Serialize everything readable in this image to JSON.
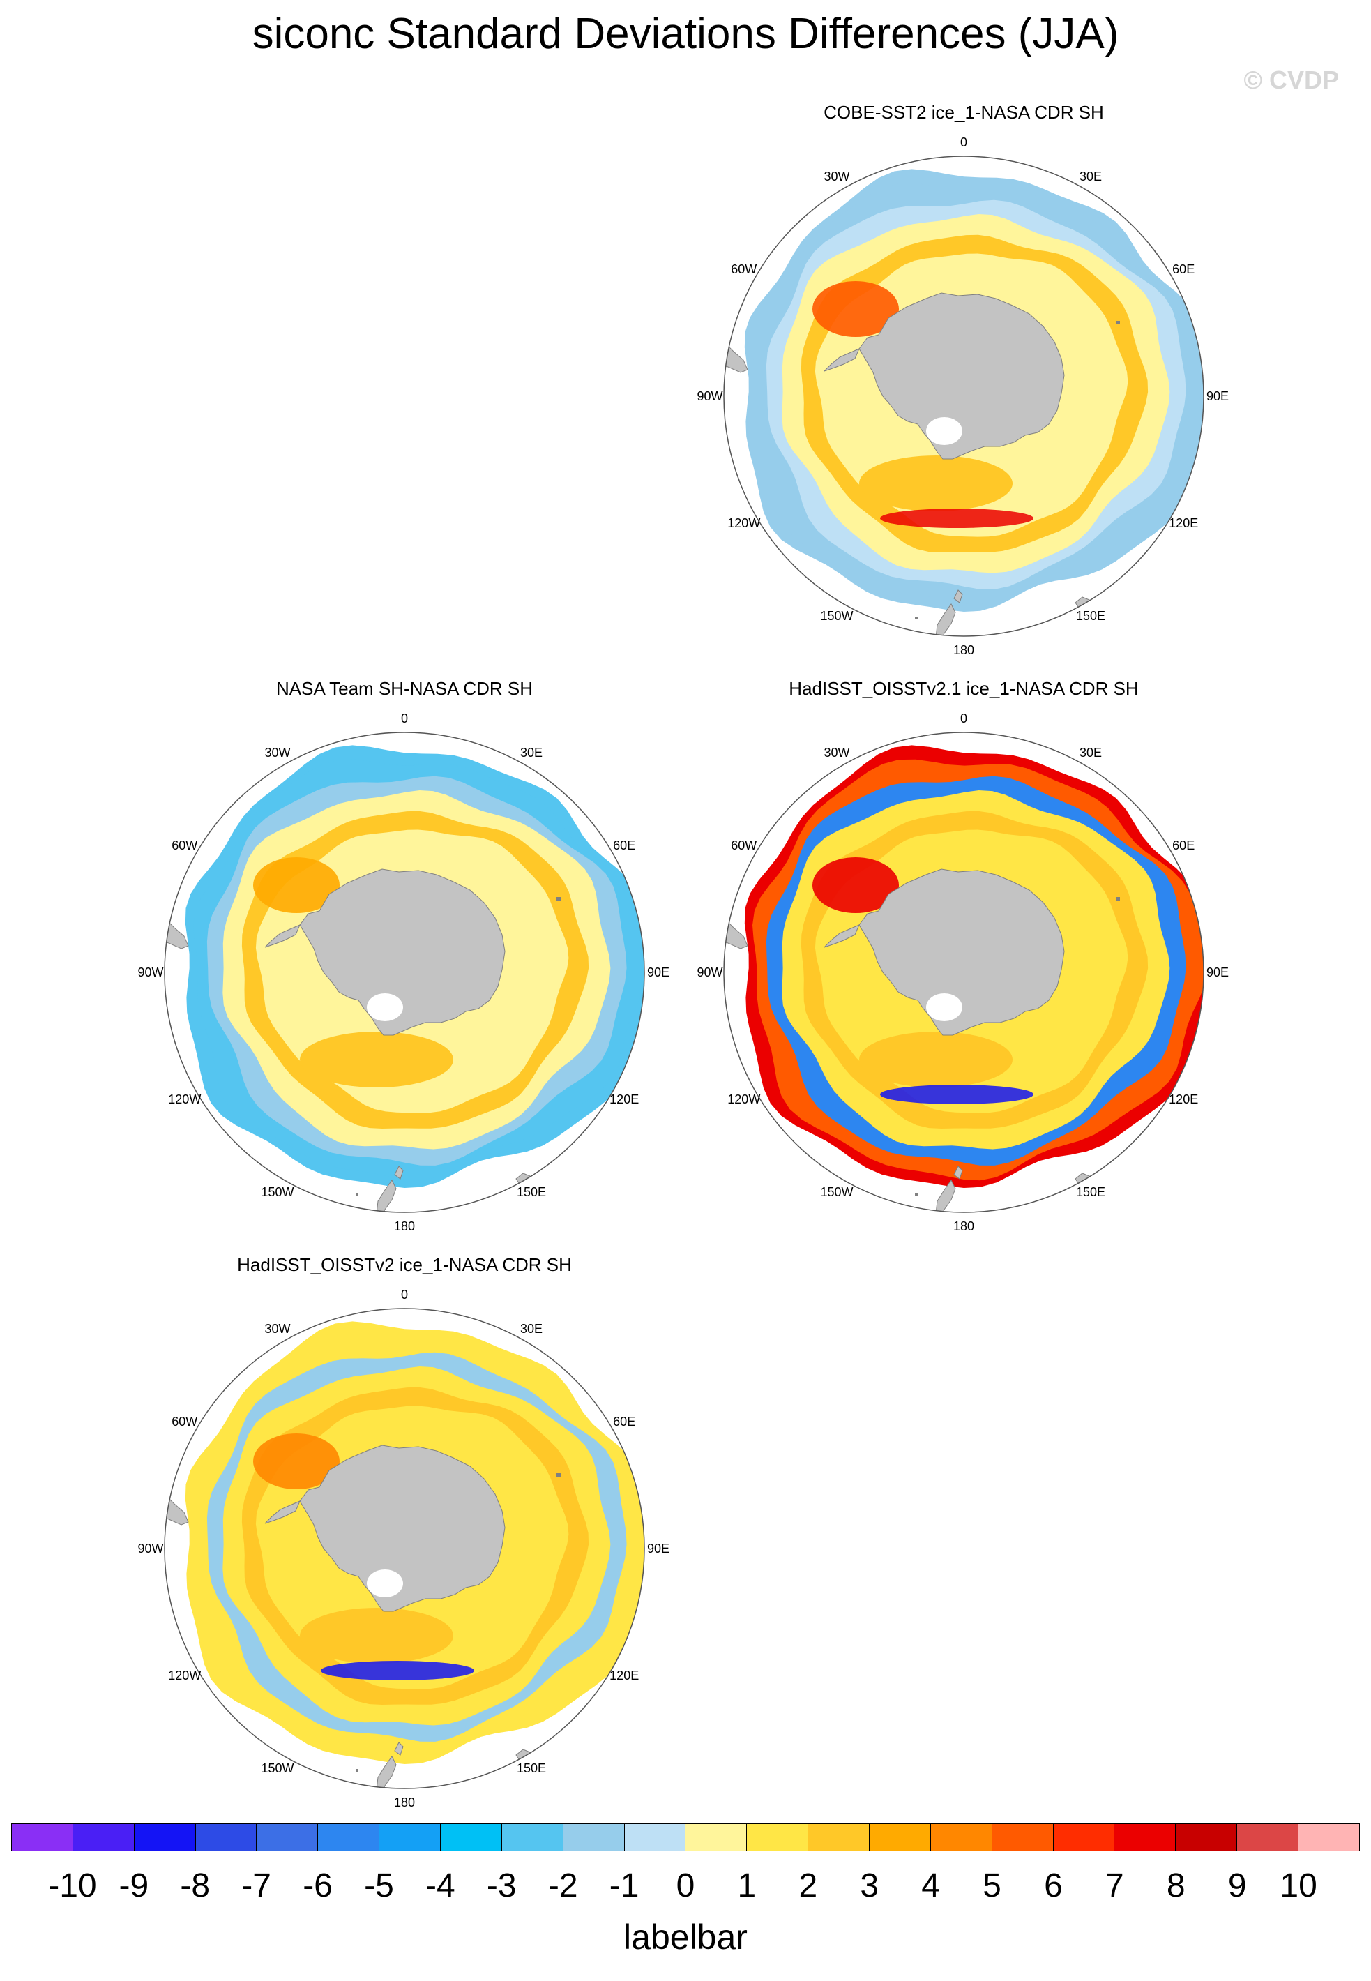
{
  "title": "siconc Standard Deviations Differences (JJA)",
  "watermark": "© CVDP",
  "longitude_labels": {
    "top": "0",
    "tr": "30E",
    "rtop": "60E",
    "right": "90E",
    "rbot": "120E",
    "br": "150E",
    "bottom": "180",
    "bl": "150W",
    "lbot": "120W",
    "left": "90W",
    "ltop": "60W",
    "tl": "30W"
  },
  "panels": [
    {
      "id": "cobe",
      "title": "COBE-SST2 ice_1-NASA CDR SH",
      "style": "cobe"
    },
    {
      "id": "nasateam",
      "title": "NASA Team SH-NASA CDR SH",
      "style": "nasateam"
    },
    {
      "id": "hadoisst21",
      "title": "HadISST_OISSTv2.1 ice_1-NASA CDR SH",
      "style": "had21"
    },
    {
      "id": "hadoisst2",
      "title": "HadISST_OISSTv2 ice_1-NASA CDR SH",
      "style": "had2"
    }
  ],
  "labelbar": {
    "title": "labelbar",
    "ticks": [
      "-10",
      "-9",
      "-8",
      "-7",
      "-6",
      "-5",
      "-4",
      "-3",
      "-2",
      "-1",
      "0",
      "1",
      "2",
      "3",
      "4",
      "5",
      "6",
      "7",
      "8",
      "9",
      "10"
    ],
    "colors": [
      "#8a2ff5",
      "#4a1ff5",
      "#1414f5",
      "#2d4be6",
      "#3c6fe6",
      "#2d86f0",
      "#14a0f5",
      "#00c0f5",
      "#55c5f0",
      "#96cdeb",
      "#bee0f5",
      "#fff59b",
      "#ffe646",
      "#ffc828",
      "#ffaa00",
      "#ff8700",
      "#ff5a00",
      "#ff2d00",
      "#eb0000",
      "#c80000",
      "#dc4646",
      "#ffb4b4"
    ]
  }
}
